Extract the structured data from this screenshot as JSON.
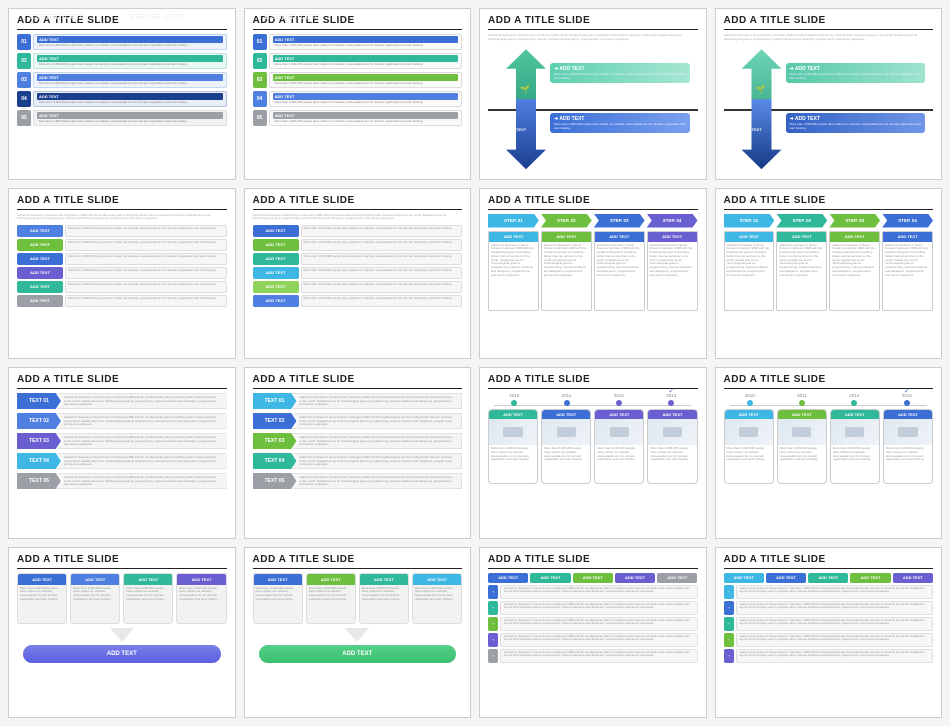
{
  "common": {
    "title": "ADD A TITLE SLIDE",
    "watermark": "asadal.com",
    "addtext": "ADD TEXT",
    "lorem_short": "More than 3,000,000 people have visited our website, www.asadal.com for domain registration and web hosting.",
    "lorem_para": "started its business in Seoul Korea in February 1998 with the fundamental goal of providing better internet services to the world. Asadal has set its Technological goal on programming, internet solutions and designers, programmers, and server engineers."
  },
  "palette": {
    "blue": "#3b6fd6",
    "blue2": "#4f7fe0",
    "teal": "#2fb89a",
    "teal2": "#45cbad",
    "green": "#6fbf3f",
    "green2": "#8fd35a",
    "purple": "#6a5fd0",
    "purple2": "#8a7fe0",
    "gray": "#9aa0a6",
    "gray2": "#b5bac0",
    "navy": "#1f4ea8",
    "darkblue": "#1a3f8f",
    "cyan": "#3fb7e4"
  },
  "r1s1": {
    "rows": [
      {
        "n": "01",
        "numbg": "#3b6fd6",
        "barbg": "#eef3fb",
        "hbg": "#3b6fd6"
      },
      {
        "n": "02",
        "numbg": "#2fb89a",
        "barbg": "#eaf8f3",
        "hbg": "#2fb89a"
      },
      {
        "n": "03",
        "numbg": "#4f7fe0",
        "barbg": "#eef3fb",
        "hbg": "#4f7fe0"
      },
      {
        "n": "04",
        "numbg": "#1a3f8f",
        "barbg": "#e9edf7",
        "hbg": "#1a3f8f"
      },
      {
        "n": "05",
        "numbg": "#9aa0a6",
        "barbg": "#f2f2f2",
        "hbg": "#9aa0a6"
      }
    ]
  },
  "r1s2": {
    "rows": [
      {
        "n": "01",
        "numbg": "#3b6fd6",
        "hbg": "#3b6fd6"
      },
      {
        "n": "02",
        "numbg": "#2fb89a",
        "hbg": "#2fb89a"
      },
      {
        "n": "03",
        "numbg": "#6fbf3f",
        "hbg": "#6fbf3f"
      },
      {
        "n": "04",
        "numbg": "#4f7fe0",
        "hbg": "#4f7fe0"
      },
      {
        "n": "05",
        "numbg": "#9aa0a6",
        "hbg": "#9aa0a6"
      }
    ]
  },
  "r1s3": {
    "up_grad": "linear-gradient(#6fd6b8,#3aa887)",
    "down_grad": "linear-gradient(#4f7fe0,#1a3f8f)",
    "box_top": "linear-gradient(90deg,#5dd0b0,#a6e6d2)",
    "box_bot": "linear-gradient(90deg,#3b6fd6,#7aa0ef)",
    "text_v": "TEXT"
  },
  "r1s4": {
    "up_grad": "linear-gradient(#6fd6b8,#3aa887)",
    "down_grad": "linear-gradient(#5a8ae8,#163a86)",
    "box_top": "linear-gradient(90deg,#55c9a8,#9fe3cf)",
    "box_bot": "linear-gradient(90deg,#3362c4,#6f96e8)"
  },
  "r2s1": {
    "rows": [
      {
        "c": "#4f7fe0"
      },
      {
        "c": "#6fbf3f"
      },
      {
        "c": "#3b6fd6"
      },
      {
        "c": "#6a5fd0"
      },
      {
        "c": "#2fb89a"
      },
      {
        "c": "#9aa0a6"
      }
    ]
  },
  "r2s2": {
    "rows": [
      {
        "c": "#3b6fd6"
      },
      {
        "c": "#6fbf3f"
      },
      {
        "c": "#2fb89a"
      },
      {
        "c": "#3fb7e4"
      },
      {
        "c": "#8fd35a"
      },
      {
        "c": "#4f7fe0"
      }
    ]
  },
  "r2s3": {
    "steps": [
      {
        "l": "STEP. 01",
        "c": "#3fb7e4"
      },
      {
        "l": "STEP. 02",
        "c": "#6fbf3f"
      },
      {
        "l": "STEP. 03",
        "c": "#3b6fd6"
      },
      {
        "l": "STEP. 04",
        "c": "#6a5fd0"
      }
    ],
    "cols": [
      {
        "c": "#3fb7e4"
      },
      {
        "c": "#6fbf3f"
      },
      {
        "c": "#3b6fd6"
      },
      {
        "c": "#6a5fd0"
      }
    ]
  },
  "r2s4": {
    "steps": [
      {
        "l": "STEP. 01",
        "c": "#3fb7e4"
      },
      {
        "l": "STEP. 02",
        "c": "#2fb89a"
      },
      {
        "l": "STEP. 03",
        "c": "#6fbf3f"
      },
      {
        "l": "STEP. 04",
        "c": "#3b6fd6"
      }
    ],
    "cols": [
      {
        "c": "#3fb7e4"
      },
      {
        "c": "#2fb89a"
      },
      {
        "c": "#6fbf3f"
      },
      {
        "c": "#3b6fd6"
      }
    ]
  },
  "r3s1": {
    "rows": [
      {
        "l": "TEXT 01",
        "c": "#3b6fd6"
      },
      {
        "l": "TEXT 02",
        "c": "#4f7fe0"
      },
      {
        "l": "TEXT 03",
        "c": "#6a5fd0"
      },
      {
        "l": "TEXT 04",
        "c": "#3fb7e4"
      },
      {
        "l": "TEXT 05",
        "c": "#9aa0a6"
      }
    ]
  },
  "r3s2": {
    "rows": [
      {
        "l": "TEXT 01",
        "c": "#3fb7e4"
      },
      {
        "l": "TEXT 02",
        "c": "#3b6fd6"
      },
      {
        "l": "TEXT 03",
        "c": "#6fbf3f"
      },
      {
        "l": "TEXT 04",
        "c": "#2fb89a"
      },
      {
        "l": "TEXT 05",
        "c": "#9aa0a6"
      }
    ]
  },
  "r3s3": {
    "years": [
      {
        "y": "2010",
        "c": "#2fb89a",
        "chk": false
      },
      {
        "y": "2011",
        "c": "#3b6fd6",
        "chk": false
      },
      {
        "y": "2012",
        "c": "#6a5fd0",
        "chk": false
      },
      {
        "y": "2013",
        "c": "#6a5fd0",
        "chk": true
      }
    ],
    "cards": [
      {
        "c": "#2fb89a"
      },
      {
        "c": "#3b6fd6"
      },
      {
        "c": "#6a5fd0"
      },
      {
        "c": "#6a5fd0"
      }
    ]
  },
  "r3s4": {
    "years": [
      {
        "y": "2010",
        "c": "#3fb7e4",
        "chk": false
      },
      {
        "y": "2011",
        "c": "#6fbf3f",
        "chk": false
      },
      {
        "y": "2012",
        "c": "#2fb89a",
        "chk": false
      },
      {
        "y": "2013",
        "c": "#3b6fd6",
        "chk": true
      }
    ],
    "cards": [
      {
        "c": "#3fb7e4"
      },
      {
        "c": "#6fbf3f"
      },
      {
        "c": "#2fb89a"
      },
      {
        "c": "#3b6fd6"
      }
    ]
  },
  "r4s1": {
    "cards": [
      {
        "c": "#3b6fd6"
      },
      {
        "c": "#4f7fe0"
      },
      {
        "c": "#2fb89a"
      },
      {
        "c": "#6a5fd0"
      }
    ],
    "pill_c": "#5a5fe0"
  },
  "r4s2": {
    "cards": [
      {
        "c": "#3b6fd6"
      },
      {
        "c": "#6fbf3f"
      },
      {
        "c": "#2fb89a"
      },
      {
        "c": "#3fb7e4"
      }
    ],
    "pill_c": "#3ac070"
  },
  "r4s3": {
    "heads": [
      {
        "c": "#3b6fd6"
      },
      {
        "c": "#2fb89a"
      },
      {
        "c": "#6fbf3f"
      },
      {
        "c": "#6a5fd0"
      },
      {
        "c": "#9aa0a6"
      }
    ],
    "rows": [
      {
        "st": "#3b6fd6"
      },
      {
        "st": "#2fb89a"
      },
      {
        "st": "#6fbf3f"
      },
      {
        "st": "#6a5fd0"
      },
      {
        "st": "#9aa0a6"
      }
    ]
  },
  "r4s4": {
    "heads": [
      {
        "c": "#3fb7e4"
      },
      {
        "c": "#3b6fd6"
      },
      {
        "c": "#2fb89a"
      },
      {
        "c": "#6fbf3f"
      },
      {
        "c": "#6a5fd0"
      }
    ],
    "rows": [
      {
        "st": "#3fb7e4"
      },
      {
        "st": "#3b6fd6"
      },
      {
        "st": "#2fb89a"
      },
      {
        "st": "#6fbf3f"
      },
      {
        "st": "#6a5fd0"
      }
    ]
  }
}
